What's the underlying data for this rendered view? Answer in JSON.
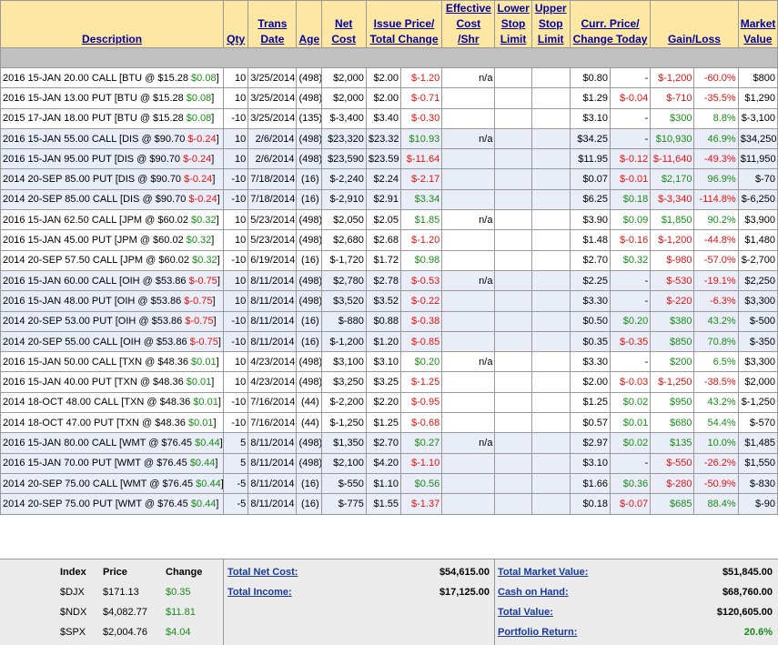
{
  "headers": {
    "description": "Description",
    "qty": "Qty",
    "trans_date_1": "Trans",
    "trans_date_2": "Date",
    "age": "Age",
    "net_cost_1": "Net",
    "net_cost_2": "Cost",
    "issue_1": "Issue Price/",
    "issue_2": "Total Change",
    "eff_1": "Effective",
    "eff_2": "Cost",
    "eff_3": "/Shr",
    "lower_1": "Lower",
    "lower_2": "Stop",
    "lower_3": "Limit",
    "upper_1": "Upper",
    "upper_2": "Stop",
    "upper_3": "Limit",
    "curr_1": "Curr. Price/",
    "curr_2": "Change Today",
    "gain": "Gain/Loss",
    "mkt_1": "Market",
    "mkt_2": "Value"
  },
  "rows": [
    {
      "desc": "2016 15-JAN 20.00 CALL [BTU @ $15.28 ",
      "chg": "$0.08",
      "chg_c": "pos",
      "qty": "10",
      "date": "3/25/2014",
      "age": "(498)",
      "net": "$2,000",
      "issue": "$2.00",
      "tchg": "$-1.20",
      "tchg_c": "neg",
      "eff": "n/a",
      "curr": "$0.80",
      "today": "-",
      "today_c": "",
      "gl": "$-1,200",
      "gl_c": "neg",
      "glp": "-60.0%",
      "glp_c": "neg",
      "mv": "$800",
      "blue": false
    },
    {
      "desc": "2016 15-JAN 13.00 PUT [BTU @ $15.28 ",
      "chg": "$0.08",
      "chg_c": "pos",
      "qty": "10",
      "date": "3/25/2014",
      "age": "(498)",
      "net": "$2,000",
      "issue": "$2.00",
      "tchg": "$-0.71",
      "tchg_c": "neg",
      "eff": "",
      "curr": "$1.29",
      "today": "$-0.04",
      "today_c": "neg",
      "gl": "$-710",
      "gl_c": "neg",
      "glp": "-35.5%",
      "glp_c": "neg",
      "mv": "$1,290",
      "blue": false
    },
    {
      "desc": "2015 17-JAN 18.00 PUT [BTU @ $15.28 ",
      "chg": "$0.08",
      "chg_c": "pos",
      "qty": "-10",
      "date": "3/25/2014",
      "age": "(135)",
      "net": "$-3,400",
      "issue": "$3.40",
      "tchg": "$-0.30",
      "tchg_c": "neg",
      "eff": "",
      "curr": "$3.10",
      "today": "-",
      "today_c": "",
      "gl": "$300",
      "gl_c": "pos",
      "glp": "8.8%",
      "glp_c": "pos",
      "mv": "$-3,100",
      "blue": false
    },
    {
      "desc": "2016 15-JAN 55.00 CALL [DIS @ $90.70 ",
      "chg": "$-0.24",
      "chg_c": "neg",
      "qty": "10",
      "date": "2/6/2014",
      "age": "(498)",
      "net": "$23,320",
      "issue": "$23.32",
      "tchg": "$10.93",
      "tchg_c": "pos",
      "eff": "n/a",
      "curr": "$34.25",
      "today": "-",
      "today_c": "",
      "gl": "$10,930",
      "gl_c": "pos",
      "glp": "46.9%",
      "glp_c": "pos",
      "mv": "$34,250",
      "blue": true
    },
    {
      "desc": "2016 15-JAN 95.00 PUT [DIS @ $90.70 ",
      "chg": "$-0.24",
      "chg_c": "neg",
      "qty": "10",
      "date": "2/6/2014",
      "age": "(498)",
      "net": "$23,590",
      "issue": "$23.59",
      "tchg": "$-11.64",
      "tchg_c": "neg",
      "eff": "",
      "curr": "$11.95",
      "today": "$-0.12",
      "today_c": "neg",
      "gl": "$-11,640",
      "gl_c": "neg",
      "glp": "-49.3%",
      "glp_c": "neg",
      "mv": "$11,950",
      "blue": true
    },
    {
      "desc": "2014 20-SEP 85.00 PUT [DIS @ $90.70 ",
      "chg": "$-0.24",
      "chg_c": "neg",
      "qty": "-10",
      "date": "7/18/2014",
      "age": "(16)",
      "net": "$-2,240",
      "issue": "$2.24",
      "tchg": "$-2.17",
      "tchg_c": "neg",
      "eff": "",
      "curr": "$0.07",
      "today": "$-0.01",
      "today_c": "neg",
      "gl": "$2,170",
      "gl_c": "pos",
      "glp": "96.9%",
      "glp_c": "pos",
      "mv": "$-70",
      "blue": true
    },
    {
      "desc": "2014 20-SEP 85.00 CALL [DIS @ $90.70 ",
      "chg": "$-0.24",
      "chg_c": "neg",
      "qty": "-10",
      "date": "7/18/2014",
      "age": "(16)",
      "net": "$-2,910",
      "issue": "$2.91",
      "tchg": "$3.34",
      "tchg_c": "pos",
      "eff": "",
      "curr": "$6.25",
      "today": "$0.18",
      "today_c": "pos",
      "gl": "$-3,340",
      "gl_c": "neg",
      "glp": "-114.8%",
      "glp_c": "neg",
      "mv": "$-6,250",
      "blue": true
    },
    {
      "desc": "2016 15-JAN 62.50 CALL [JPM @ $60.02 ",
      "chg": "$0.32",
      "chg_c": "pos",
      "qty": "10",
      "date": "5/23/2014",
      "age": "(498)",
      "net": "$2,050",
      "issue": "$2.05",
      "tchg": "$1.85",
      "tchg_c": "pos",
      "eff": "n/a",
      "curr": "$3.90",
      "today": "$0.09",
      "today_c": "pos",
      "gl": "$1,850",
      "gl_c": "pos",
      "glp": "90.2%",
      "glp_c": "pos",
      "mv": "$3,900",
      "blue": false
    },
    {
      "desc": "2016 15-JAN 45.00 PUT [JPM @ $60.02 ",
      "chg": "$0.32",
      "chg_c": "pos",
      "qty": "10",
      "date": "5/23/2014",
      "age": "(498)",
      "net": "$2,680",
      "issue": "$2.68",
      "tchg": "$-1.20",
      "tchg_c": "neg",
      "eff": "",
      "curr": "$1.48",
      "today": "$-0.16",
      "today_c": "neg",
      "gl": "$-1,200",
      "gl_c": "neg",
      "glp": "-44.8%",
      "glp_c": "neg",
      "mv": "$1,480",
      "blue": false
    },
    {
      "desc": "2014 20-SEP 57.50 CALL [JPM @ $60.02 ",
      "chg": "$0.32",
      "chg_c": "pos",
      "qty": "-10",
      "date": "6/19/2014",
      "age": "(16)",
      "net": "$-1,720",
      "issue": "$1.72",
      "tchg": "$0.98",
      "tchg_c": "pos",
      "eff": "",
      "curr": "$2.70",
      "today": "$0.32",
      "today_c": "pos",
      "gl": "$-980",
      "gl_c": "neg",
      "glp": "-57.0%",
      "glp_c": "neg",
      "mv": "$-2,700",
      "blue": false
    },
    {
      "desc": "2016 15-JAN 60.00 CALL [OIH @ $53.86 ",
      "chg": "$-0.75",
      "chg_c": "neg",
      "qty": "10",
      "date": "8/11/2014",
      "age": "(498)",
      "net": "$2,780",
      "issue": "$2.78",
      "tchg": "$-0.53",
      "tchg_c": "neg",
      "eff": "n/a",
      "curr": "$2.25",
      "today": "-",
      "today_c": "",
      "gl": "$-530",
      "gl_c": "neg",
      "glp": "-19.1%",
      "glp_c": "neg",
      "mv": "$2,250",
      "blue": true
    },
    {
      "desc": "2016 15-JAN 48.00 PUT [OIH @ $53.86 ",
      "chg": "$-0.75",
      "chg_c": "neg",
      "qty": "10",
      "date": "8/11/2014",
      "age": "(498)",
      "net": "$3,520",
      "issue": "$3.52",
      "tchg": "$-0.22",
      "tchg_c": "neg",
      "eff": "",
      "curr": "$3.30",
      "today": "-",
      "today_c": "",
      "gl": "$-220",
      "gl_c": "neg",
      "glp": "-6.3%",
      "glp_c": "neg",
      "mv": "$3,300",
      "blue": true
    },
    {
      "desc": "2014 20-SEP 53.00 PUT [OIH @ $53.86 ",
      "chg": "$-0.75",
      "chg_c": "neg",
      "qty": "-10",
      "date": "8/11/2014",
      "age": "(16)",
      "net": "$-880",
      "issue": "$0.88",
      "tchg": "$-0.38",
      "tchg_c": "neg",
      "eff": "",
      "curr": "$0.50",
      "today": "$0.20",
      "today_c": "pos",
      "gl": "$380",
      "gl_c": "pos",
      "glp": "43.2%",
      "glp_c": "pos",
      "mv": "$-500",
      "blue": true
    },
    {
      "desc": "2014 20-SEP 55.00 CALL [OIH @ $53.86 ",
      "chg": "$-0.75",
      "chg_c": "neg",
      "qty": "-10",
      "date": "8/11/2014",
      "age": "(16)",
      "net": "$-1,200",
      "issue": "$1.20",
      "tchg": "$-0.85",
      "tchg_c": "neg",
      "eff": "",
      "curr": "$0.35",
      "today": "$-0.35",
      "today_c": "neg",
      "gl": "$850",
      "gl_c": "pos",
      "glp": "70.8%",
      "glp_c": "pos",
      "mv": "$-350",
      "blue": true
    },
    {
      "desc": "2016 15-JAN 50.00 CALL [TXN @ $48.36 ",
      "chg": "$0.01",
      "chg_c": "pos",
      "qty": "10",
      "date": "4/23/2014",
      "age": "(498)",
      "net": "$3,100",
      "issue": "$3.10",
      "tchg": "$0.20",
      "tchg_c": "pos",
      "eff": "n/a",
      "curr": "$3.30",
      "today": "-",
      "today_c": "",
      "gl": "$200",
      "gl_c": "pos",
      "glp": "6.5%",
      "glp_c": "pos",
      "mv": "$3,300",
      "blue": false
    },
    {
      "desc": "2016 15-JAN 40.00 PUT [TXN @ $48.36 ",
      "chg": "$0.01",
      "chg_c": "pos",
      "qty": "10",
      "date": "4/23/2014",
      "age": "(498)",
      "net": "$3,250",
      "issue": "$3.25",
      "tchg": "$-1.25",
      "tchg_c": "neg",
      "eff": "",
      "curr": "$2.00",
      "today": "$-0.03",
      "today_c": "neg",
      "gl": "$-1,250",
      "gl_c": "neg",
      "glp": "-38.5%",
      "glp_c": "neg",
      "mv": "$2,000",
      "blue": false
    },
    {
      "desc": "2014 18-OCT 48.00 CALL [TXN @ $48.36 ",
      "chg": "$0.01",
      "chg_c": "pos",
      "qty": "-10",
      "date": "7/16/2014",
      "age": "(44)",
      "net": "$-2,200",
      "issue": "$2.20",
      "tchg": "$-0.95",
      "tchg_c": "neg",
      "eff": "",
      "curr": "$1.25",
      "today": "$0.02",
      "today_c": "pos",
      "gl": "$950",
      "gl_c": "pos",
      "glp": "43.2%",
      "glp_c": "pos",
      "mv": "$-1,250",
      "blue": false
    },
    {
      "desc": "2014 18-OCT 47.00 PUT [TXN @ $48.36 ",
      "chg": "$0.01",
      "chg_c": "pos",
      "qty": "-10",
      "date": "7/16/2014",
      "age": "(44)",
      "net": "$-1,250",
      "issue": "$1.25",
      "tchg": "$-0.68",
      "tchg_c": "neg",
      "eff": "",
      "curr": "$0.57",
      "today": "$0.01",
      "today_c": "pos",
      "gl": "$680",
      "gl_c": "pos",
      "glp": "54.4%",
      "glp_c": "pos",
      "mv": "$-570",
      "blue": false
    },
    {
      "desc": "2016 15-JAN 80.00 CALL [WMT @ $76.45 ",
      "chg": "$0.44",
      "chg_c": "pos",
      "qty": "5",
      "date": "8/11/2014",
      "age": "(498)",
      "net": "$1,350",
      "issue": "$2.70",
      "tchg": "$0.27",
      "tchg_c": "pos",
      "eff": "n/a",
      "curr": "$2.97",
      "today": "$0.02",
      "today_c": "pos",
      "gl": "$135",
      "gl_c": "pos",
      "glp": "10.0%",
      "glp_c": "pos",
      "mv": "$1,485",
      "blue": true
    },
    {
      "desc": "2016 15-JAN 70.00 PUT [WMT @ $76.45 ",
      "chg": "$0.44",
      "chg_c": "pos",
      "qty": "5",
      "date": "8/11/2014",
      "age": "(498)",
      "net": "$2,100",
      "issue": "$4.20",
      "tchg": "$-1.10",
      "tchg_c": "neg",
      "eff": "",
      "curr": "$3.10",
      "today": "-",
      "today_c": "",
      "gl": "$-550",
      "gl_c": "neg",
      "glp": "-26.2%",
      "glp_c": "neg",
      "mv": "$1,550",
      "blue": true
    },
    {
      "desc": "2014 20-SEP 75.00 CALL [WMT @ $76.45 ",
      "chg": "$0.44",
      "chg_c": "pos",
      "qty": "-5",
      "date": "8/11/2014",
      "age": "(16)",
      "net": "$-550",
      "issue": "$1.10",
      "tchg": "$0.56",
      "tchg_c": "pos",
      "eff": "",
      "curr": "$1.66",
      "today": "$0.36",
      "today_c": "pos",
      "gl": "$-280",
      "gl_c": "neg",
      "glp": "-50.9%",
      "glp_c": "neg",
      "mv": "$-830",
      "blue": true
    },
    {
      "desc": "2014 20-SEP 75.00 PUT [WMT @ $76.45 ",
      "chg": "$0.44",
      "chg_c": "pos",
      "qty": "-5",
      "date": "8/11/2014",
      "age": "(16)",
      "net": "$-775",
      "issue": "$1.55",
      "tchg": "$-1.37",
      "tchg_c": "neg",
      "eff": "",
      "curr": "$0.18",
      "today": "$-0.07",
      "today_c": "neg",
      "gl": "$685",
      "gl_c": "pos",
      "glp": "88.4%",
      "glp_c": "pos",
      "mv": "$-90",
      "blue": true
    }
  ],
  "footer": {
    "idx_header": {
      "index": "Index",
      "price": "Price",
      "change": "Change"
    },
    "indices": [
      {
        "name": "$DJX",
        "price": "$171.13",
        "change": "$0.35"
      },
      {
        "name": "$NDX",
        "price": "$4,082.77",
        "change": "$11.81"
      },
      {
        "name": "$SPX",
        "price": "$2,004.76",
        "change": "$4.04"
      }
    ],
    "total_net_cost_label": "Total Net Cost:",
    "total_net_cost": "$54,615.00",
    "total_income_label": "Total Income:",
    "total_income": "$17,125.00",
    "total_market_value_label": "Total Market Value:",
    "total_market_value": "$51,845.00",
    "cash_on_hand_label": "Cash on Hand:",
    "cash_on_hand": "$68,760.00",
    "total_value_label": "Total Value:",
    "total_value": "$120,605.00",
    "portfolio_return_label": "Portfolio Return:",
    "portfolio_return": "20.6%"
  },
  "colors": {
    "header_bg": "#fee7a3",
    "header_text": "#0000a0",
    "positive": "#1a8a1a",
    "negative": "#e31313",
    "band": "#c0c0c0",
    "alt_row": "#e9edf7"
  }
}
